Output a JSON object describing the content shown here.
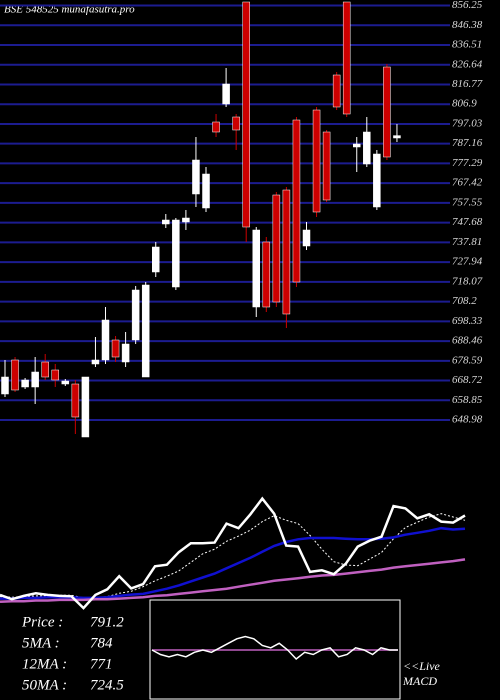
{
  "chart_data": {
    "type": "candlestick",
    "title": "BSE 548525 munafasutra.pro",
    "open": [
      662,
      679,
      665.5,
      665.5,
      678,
      674,
      667,
      667,
      640.5,
      677,
      679,
      689,
      678,
      689,
      670.5,
      723,
      747,
      715.5,
      748,
      762,
      755,
      798,
      807,
      800.5,
      858,
      705.5,
      738,
      761.5,
      764,
      799,
      736,
      804,
      793,
      821.5,
      858,
      785.5,
      777,
      755.5,
      825.5,
      790
    ],
    "high": [
      679,
      680.5,
      670,
      680.5,
      682,
      677,
      669.5,
      669,
      670.5,
      690.5,
      705.5,
      691,
      693,
      716,
      718,
      738,
      752,
      750,
      754,
      790.5,
      775.5,
      802,
      825,
      802,
      858,
      745.5,
      740.5,
      763,
      765.5,
      800.5,
      748,
      805.5,
      794,
      823,
      858,
      790.5,
      800.5,
      784,
      827,
      797
    ],
    "low": [
      660.5,
      663,
      664.5,
      657,
      669,
      665.5,
      666,
      642,
      640.5,
      675.5,
      677,
      678,
      675.5,
      687,
      670.5,
      720.5,
      745,
      714,
      744,
      755.5,
      753,
      790.5,
      805.5,
      784,
      738,
      700.5,
      703,
      705.5,
      695,
      715.5,
      734,
      750.5,
      758,
      804,
      800.5,
      773,
      775.5,
      754,
      779,
      788
    ],
    "close": [
      670.5,
      664,
      669,
      673,
      670.5,
      669,
      668.5,
      650.5,
      670.5,
      679,
      699,
      680.5,
      687,
      714,
      716.5,
      735.5,
      749,
      749,
      750,
      779,
      772,
      793,
      817,
      794,
      745.5,
      744,
      705.5,
      708,
      702,
      718,
      744,
      753,
      759,
      805.5,
      802,
      787,
      793,
      782,
      780.5,
      791.2
    ],
    "up_color": "#ffffff",
    "down_color": "#cc0000",
    "ylim": [
      640,
      858
    ],
    "yticks": [
      856.25,
      846.38,
      836.51,
      826.64,
      816.77,
      806.9,
      797.03,
      787.16,
      777.29,
      767.42,
      757.55,
      747.68,
      737.81,
      727.94,
      718.07,
      708.2,
      698.33,
      688.46,
      678.59,
      668.72,
      658.85,
      648.98
    ],
    "grid": true,
    "grid_color": "#1c1c90",
    "ma_panel": {
      "ylim": [
        640,
        830
      ],
      "price_color": "#ffffff",
      "series": [
        {
          "name": "5MA",
          "color": "#ffffff",
          "dashed": true,
          "values": [
            668,
            667,
            668,
            669,
            669,
            670,
            670,
            666,
            666,
            668,
            673,
            676,
            683,
            692,
            699,
            707,
            720,
            733,
            740,
            752,
            760,
            769,
            782,
            791,
            784,
            779,
            761,
            740,
            721,
            716,
            715,
            725,
            735,
            756,
            773,
            781,
            789,
            794,
            789,
            784
          ]
        },
        {
          "name": "12MA",
          "color": "#1010d0",
          "dashed": false,
          "values": [
            665,
            665,
            666,
            666,
            667,
            667,
            667,
            666,
            666,
            667,
            669,
            671,
            672,
            676,
            680,
            685,
            691,
            697,
            703,
            711,
            719,
            727,
            736,
            745,
            751,
            755,
            757,
            757,
            757,
            756,
            755,
            755,
            756,
            758,
            762,
            765,
            768,
            772,
            770,
            771
          ]
        },
        {
          "name": "50MA",
          "color": "#c060c0",
          "dashed": false,
          "values": [
            660,
            661,
            661,
            662,
            662,
            663,
            663,
            663,
            664,
            664,
            665,
            666,
            667,
            669,
            670,
            672,
            674,
            676,
            678,
            680,
            683,
            686,
            689,
            692,
            694,
            696,
            698,
            700,
            701,
            703,
            705,
            707,
            709,
            712,
            714,
            716,
            718,
            720,
            722,
            724.5
          ]
        }
      ]
    },
    "stats": [
      {
        "label": "Price :",
        "value": 791.2
      },
      {
        "label": "5MA :",
        "value": 784
      },
      {
        "label": "12MA :",
        "value": 771
      },
      {
        "label": "50MA :",
        "value": 724.5
      }
    ],
    "macd": {
      "ylim": [
        -20,
        20
      ],
      "live": "<<Live",
      "label": "MACD",
      "line_color": "#ffffff",
      "signal_color": "#c060c0",
      "values": [
        0,
        -2,
        -3,
        -2,
        -3,
        -1,
        0,
        -1,
        1,
        3,
        5,
        6,
        5,
        2,
        1,
        3,
        0,
        -4,
        -1,
        -2,
        0,
        1,
        -3,
        -2,
        1,
        0,
        -2,
        1,
        0,
        0
      ],
      "signal": [
        0,
        0,
        0,
        0,
        0,
        0,
        0,
        0,
        0,
        0,
        0,
        0,
        0,
        0,
        0,
        0,
        0,
        0,
        0,
        0,
        0,
        0,
        0,
        0,
        0,
        0,
        0,
        0,
        0,
        0
      ]
    }
  }
}
